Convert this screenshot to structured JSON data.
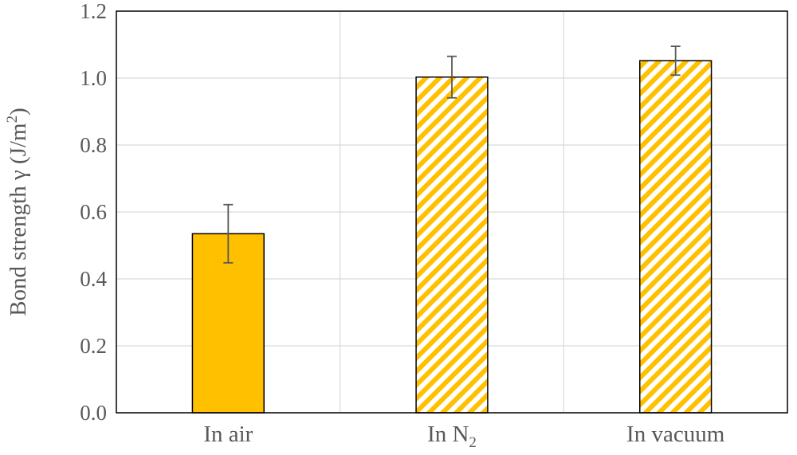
{
  "chart_data": {
    "type": "bar",
    "title": "",
    "xlabel": "",
    "ylabel": "Bond strength γ (J/m",
    "ylabel_superscript": "2",
    "ylabel_suffix": ")",
    "categories": [
      "In air",
      "In N",
      "In vacuum"
    ],
    "category_subscripts": [
      "",
      "2",
      ""
    ],
    "values": [
      0.535,
      1.003,
      1.052
    ],
    "errors": [
      0.087,
      0.062,
      0.043
    ],
    "patterns": [
      "solid",
      "hatched",
      "hatched"
    ],
    "ylim": [
      0,
      1.2
    ],
    "yticks": [
      "0.0",
      "0.2",
      "0.4",
      "0.6",
      "0.8",
      "1.0",
      "1.2"
    ],
    "ytick_values": [
      0,
      0.2,
      0.4,
      0.6,
      0.8,
      1.0,
      1.2
    ],
    "grid": true,
    "colors": {
      "bar_fill": "#ffc000",
      "hatch_background": "#ffffff",
      "bar_outline": "#000000",
      "error_bar": "#595959",
      "grid": "#d9d9d9",
      "text": "#595959",
      "frame": "#000000"
    }
  }
}
